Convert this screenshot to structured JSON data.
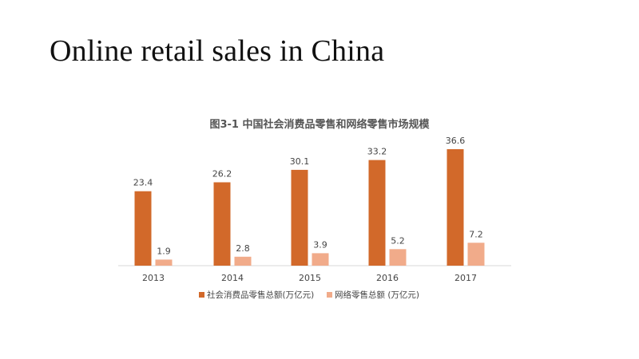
{
  "slide": {
    "title": "Online retail sales in China"
  },
  "chart_data": {
    "type": "bar",
    "title": "图3-1 中国社会消费品零售和网络零售市场规模",
    "categories": [
      "2013",
      "2014",
      "2015",
      "2016",
      "2017"
    ],
    "series": [
      {
        "name": "社会消费品零售总额(万亿元)",
        "values": [
          23.4,
          26.2,
          30.1,
          33.2,
          36.6
        ],
        "color": "#D2692A"
      },
      {
        "name": "网络零售总额 (万亿元)",
        "values": [
          1.9,
          2.8,
          3.9,
          5.2,
          7.2
        ],
        "color": "#F1AB8A"
      }
    ],
    "ylim": [
      0,
      40
    ],
    "grid": false,
    "y_axis_visible": false,
    "data_labels": true,
    "legend_position": "bottom"
  }
}
